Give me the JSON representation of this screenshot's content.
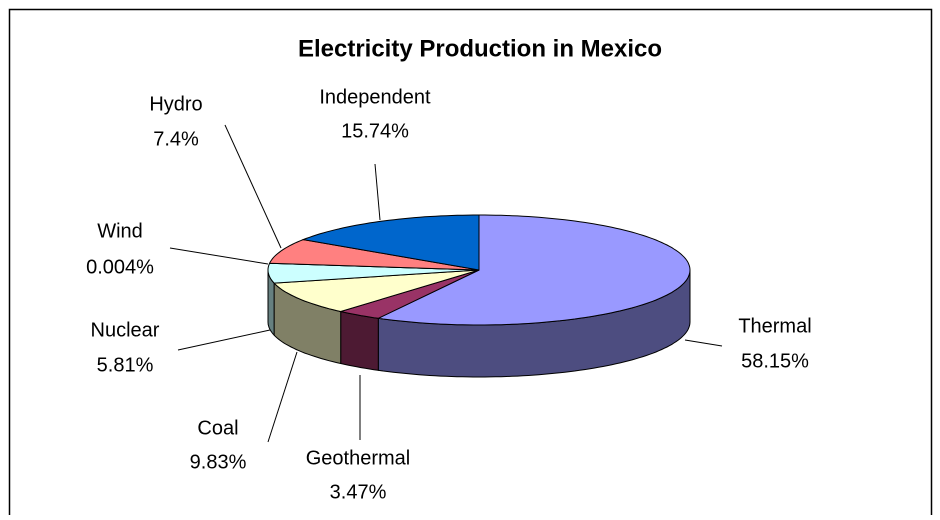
{
  "chart_data": {
    "type": "pie3d",
    "title": "Electricity Production in Mexico",
    "categories": [
      "Thermal",
      "Geothermal",
      "Coal",
      "Nuclear",
      "Wind",
      "Hydro",
      "Independent"
    ],
    "values": [
      58.15,
      3.47,
      9.83,
      5.81,
      0.004,
      7.4,
      15.74
    ],
    "value_labels": [
      "58.15%",
      "3.47%",
      "9.83%",
      "5.81%",
      "0.004%",
      "7.4%",
      "15.74%"
    ],
    "colors": [
      "#9999ff",
      "#993366",
      "#ffffcc",
      "#ccffff",
      "#660066",
      "#ff8080",
      "#0066cc"
    ]
  }
}
